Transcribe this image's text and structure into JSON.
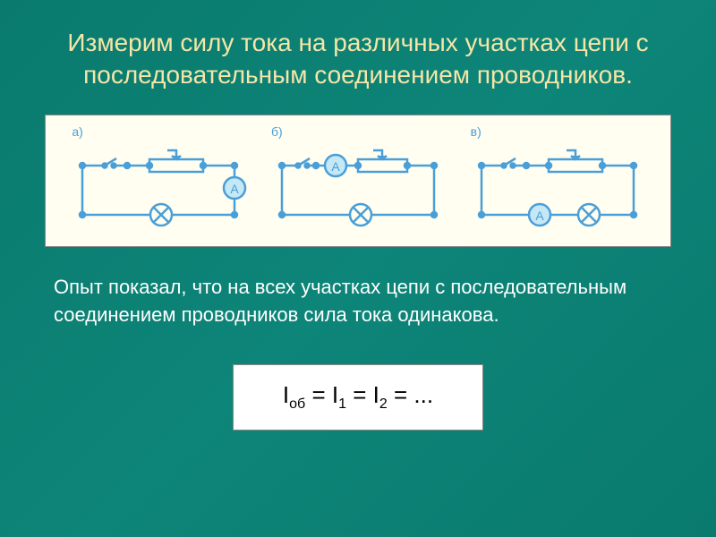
{
  "slide": {
    "title": "Измерим силу тока на различных участках цепи с последовательным соединением проводников.",
    "body_text": "Опыт показал, что на всех участках цепи с последовательным соединением проводников сила тока одинакова.",
    "formula_html": "I<sub>об</sub> = I<sub>1</sub> = I<sub>2</sub> = ...",
    "circuits": {
      "a": {
        "label": "а)"
      },
      "b": {
        "label": "б)"
      },
      "c": {
        "label": "в)"
      }
    },
    "colors": {
      "background_start": "#0a7a6e",
      "background_end": "#0d8578",
      "title_color": "#f5e6a8",
      "body_color": "#ffffff",
      "diagram_bg": "#fffef0",
      "circuit_wire": "#4a9fd8",
      "circuit_node": "#4a9fd8",
      "circuit_label": "#4a9fd8",
      "formula_bg": "#ffffff",
      "formula_color": "#000000"
    },
    "typography": {
      "title_fontsize": 28,
      "body_fontsize": 22,
      "formula_fontsize": 26,
      "label_fontsize": 14
    }
  }
}
